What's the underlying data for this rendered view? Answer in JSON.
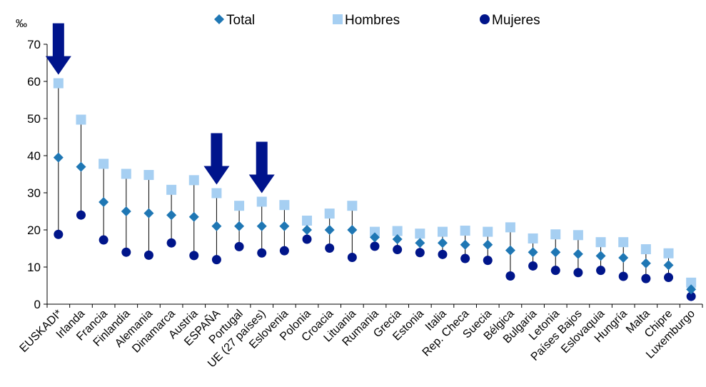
{
  "chart_data": {
    "type": "scatter",
    "unit_label": "‰",
    "ylim": [
      0,
      70
    ],
    "yticks": [
      0,
      10,
      20,
      30,
      40,
      50,
      60,
      70
    ],
    "categories": [
      "EUSKADI*",
      "Irlanda",
      "Francia",
      "Finlandia",
      "Alemania",
      "Dinamarca",
      "Austria",
      "ESPAÑA",
      "Portugal",
      "UE (27 países)",
      "Eslovenia",
      "Polonia",
      "Croacia",
      "Lituania",
      "Rumania",
      "Grecia",
      "Estonia",
      "Italia",
      "Rep. Checa",
      "Suecia",
      "Bélgica",
      "Bulgaria",
      "Letonia",
      "Países Bajos",
      "Eslovaquia",
      "Hungría",
      "Malta",
      "Chipre",
      "Luxemburgo"
    ],
    "series": [
      {
        "name": "Total",
        "color": "#1f77b4",
        "marker": "diamond",
        "values": [
          39.5,
          37.0,
          27.5,
          25.0,
          24.5,
          24.0,
          23.5,
          21.0,
          21.0,
          21.0,
          21.0,
          20.0,
          20.0,
          20.0,
          18.0,
          17.5,
          16.5,
          16.5,
          16.0,
          16.0,
          14.5,
          14.0,
          14.0,
          13.5,
          13.0,
          12.5,
          11.0,
          10.5,
          4.0
        ]
      },
      {
        "name": "Hombres",
        "color": "#a6cff2",
        "marker": "square",
        "values": [
          59.5,
          49.7,
          37.8,
          35.1,
          34.8,
          30.8,
          33.4,
          29.9,
          26.5,
          27.6,
          26.7,
          22.5,
          24.4,
          26.5,
          19.5,
          19.7,
          19.0,
          19.5,
          19.8,
          19.5,
          20.7,
          17.7,
          18.8,
          18.6,
          16.7,
          16.7,
          14.8,
          13.7,
          5.8
        ]
      },
      {
        "name": "Mujeres",
        "color": "#00158a",
        "marker": "circle",
        "values": [
          18.8,
          24.0,
          17.3,
          14.0,
          13.2,
          16.5,
          13.1,
          12.0,
          15.5,
          13.8,
          14.4,
          17.5,
          15.1,
          12.6,
          15.6,
          14.7,
          13.9,
          13.4,
          12.3,
          11.8,
          7.6,
          10.3,
          9.1,
          8.5,
          9.1,
          7.5,
          6.9,
          7.2,
          2.1
        ]
      }
    ],
    "arrows": [
      {
        "category": "EUSKADI*",
        "color": "#00148c"
      },
      {
        "category": "ESPAÑA",
        "color": "#00148c"
      },
      {
        "category": "UE (27 países)",
        "color": "#00148c"
      }
    ],
    "legend_position": "top-center",
    "grid": false
  }
}
